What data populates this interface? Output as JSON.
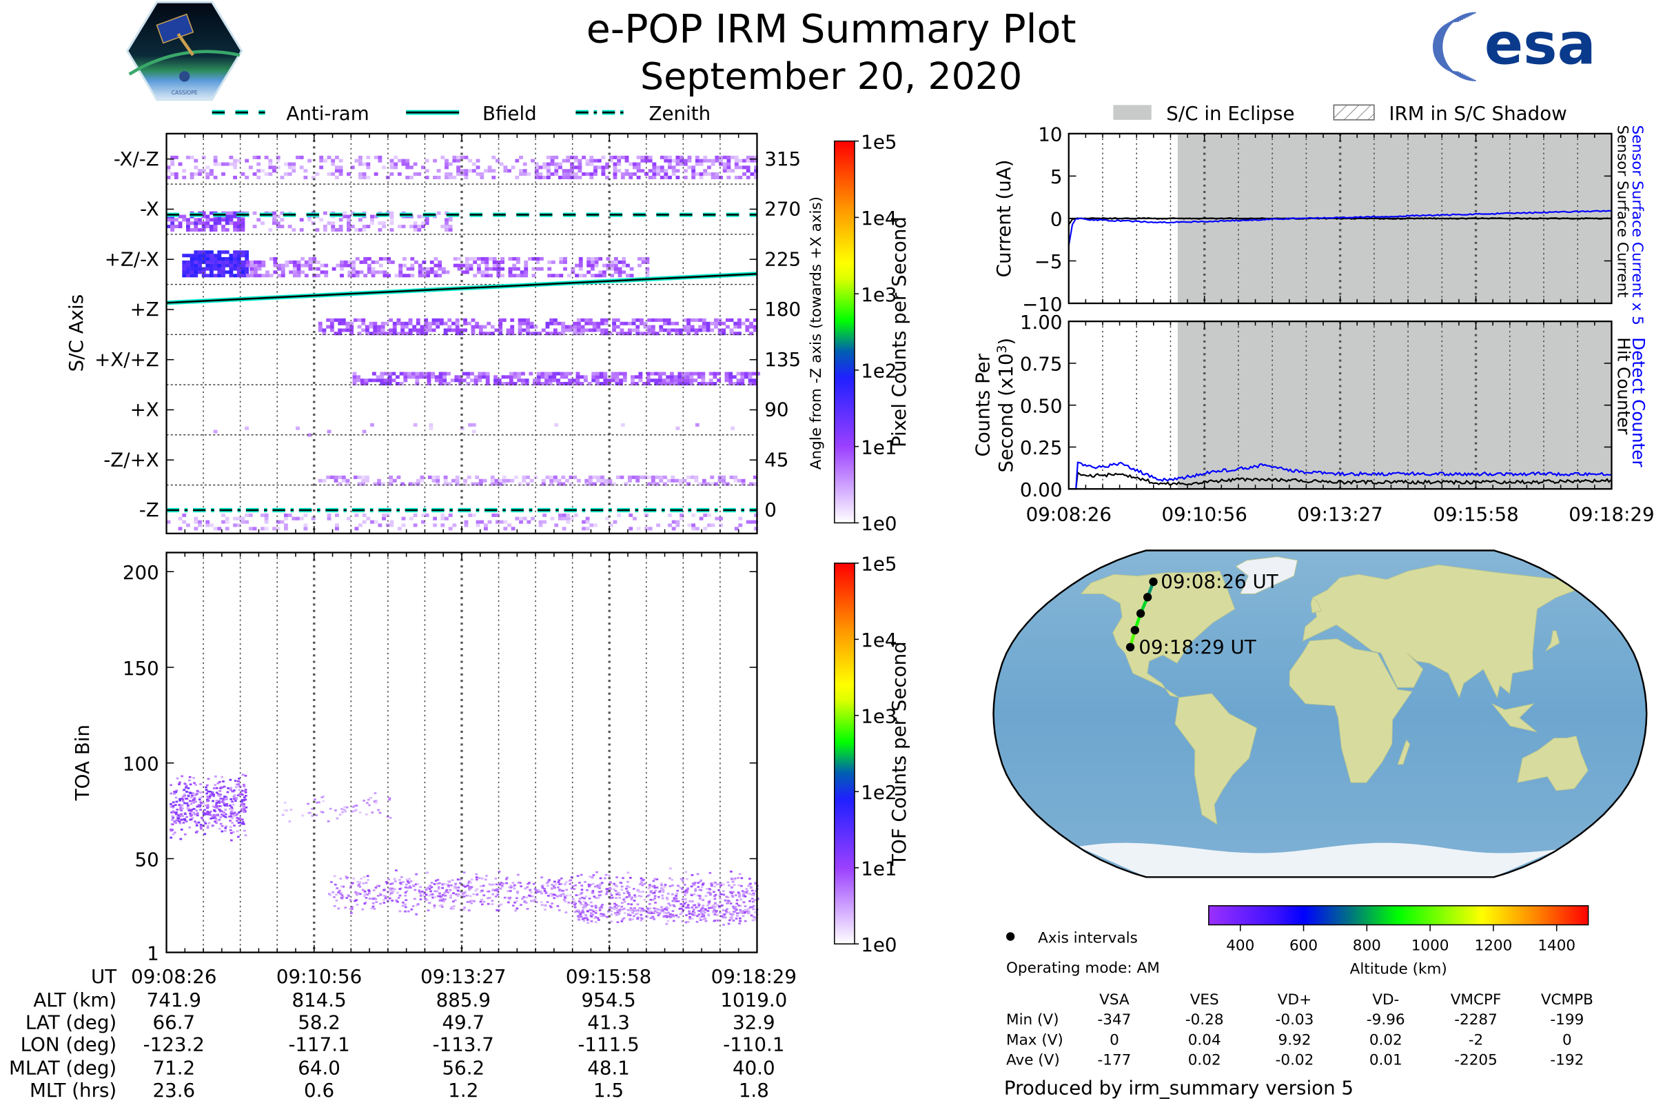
{
  "header": {
    "title": "e-POP IRM Summary Plot",
    "date": "September 20, 2020",
    "logo_left_text": "CASSIOPE",
    "logo_right_text": "esa"
  },
  "legend_left": [
    {
      "label": "Anti-ram",
      "style": "dashed"
    },
    {
      "label": "Bfield",
      "style": "solid"
    },
    {
      "label": "Zenith",
      "style": "dashdot"
    }
  ],
  "legend_right": [
    {
      "label": "S/C in Eclipse",
      "style": "fill"
    },
    {
      "label": "IRM in S/C Shadow",
      "style": "hatch"
    }
  ],
  "colors": {
    "line_cyan": "#00e8c8",
    "eclipse_gray": "#c8caca",
    "blue_series": "#0000ff",
    "esa_blue": "#0a3a8c"
  },
  "time_ticks": [
    "09:08:26",
    "09:10:56",
    "09:13:27",
    "09:15:58",
    "09:18:29"
  ],
  "chart_data": [
    {
      "id": "sc_axis",
      "type": "heatmap",
      "ylabel": "S/C Axis",
      "y2label": "Angle from -Z axis (towards +X axis)",
      "colorbar_label": "Pixel Counts per Second",
      "colorbar_ticks": [
        "1e5",
        "1e4",
        "1e3",
        "1e2",
        "1e1",
        "1e0"
      ],
      "x_range_s": [
        0,
        603
      ],
      "angle_range": [
        -21,
        338
      ],
      "axis_labels": [
        {
          "label": "-X/-Z",
          "angle": 315
        },
        {
          "label": "-X",
          "angle": 270
        },
        {
          "label": "+Z/-X",
          "angle": 225
        },
        {
          "label": "+Z",
          "angle": 180
        },
        {
          "label": "+X/+Z",
          "angle": 135
        },
        {
          "label": "+X",
          "angle": 90
        },
        {
          "label": "-Z/+X",
          "angle": 45
        },
        {
          "label": "-Z",
          "angle": 0
        }
      ],
      "angle_ticks": [
        "315",
        "270",
        "225",
        "180",
        "135",
        "90",
        "45",
        "0"
      ],
      "bands": [
        {
          "t": [
            0,
            380
          ],
          "a": [
            297,
            317
          ],
          "density": 0.3,
          "log_counts": [
            0.2,
            0.9
          ]
        },
        {
          "t": [
            380,
            603
          ],
          "a": [
            297,
            317
          ],
          "density": 0.6,
          "log_counts": [
            0.3,
            1.1
          ]
        },
        {
          "t": [
            0,
            80
          ],
          "a": [
            250,
            268
          ],
          "density": 0.7,
          "log_counts": [
            0.6,
            1.4
          ]
        },
        {
          "t": [
            80,
            290
          ],
          "a": [
            250,
            266
          ],
          "density": 0.35,
          "log_counts": [
            0.2,
            0.9
          ]
        },
        {
          "t": [
            16,
            81
          ],
          "a": [
            209,
            231
          ],
          "density": 0.9,
          "log_counts": [
            1.3,
            1.9
          ]
        },
        {
          "t": [
            81,
            490
          ],
          "a": [
            209,
            226
          ],
          "density": 0.5,
          "log_counts": [
            0.3,
            1.1
          ]
        },
        {
          "t": [
            155,
            603
          ],
          "a": [
            157,
            172
          ],
          "density": 0.6,
          "log_counts": [
            0.5,
            1.2
          ]
        },
        {
          "t": [
            190,
            603
          ],
          "a": [
            112,
            123
          ],
          "density": 0.7,
          "log_counts": [
            0.5,
            1.2
          ]
        },
        {
          "t": [
            40,
            603
          ],
          "a": [
            66,
            78
          ],
          "density": 0.04,
          "log_counts": [
            0.2,
            0.6
          ]
        },
        {
          "t": [
            155,
            603
          ],
          "a": [
            22,
            29
          ],
          "density": 0.5,
          "log_counts": [
            0.2,
            0.8
          ]
        },
        {
          "t": [
            0,
            603
          ],
          "a": [
            -18,
            -3
          ],
          "density": 0.25,
          "log_counts": [
            0.2,
            0.8
          ]
        }
      ],
      "lines": {
        "anti_ram_angle": 265,
        "zenith_angle": 0,
        "bfield_angle": [
          186,
          212
        ]
      }
    },
    {
      "id": "toa",
      "type": "scatter",
      "ylabel": "TOA Bin",
      "colorbar_label": "TOF Counts per Second",
      "colorbar_ticks": [
        "1e5",
        "1e4",
        "1e3",
        "1e2",
        "1e1",
        "1e0"
      ],
      "yticks": [
        "200",
        "150",
        "100",
        "50",
        "1"
      ],
      "ytick_values": [
        200,
        150,
        100,
        50,
        1
      ],
      "ylim": [
        1,
        210
      ],
      "clusters": [
        {
          "t": [
            3,
            81
          ],
          "bin": [
            60,
            100
          ],
          "center": 78,
          "points": 420,
          "log_counts": [
            0.4,
            1.3
          ]
        },
        {
          "t": [
            114,
            230
          ],
          "bin": [
            66,
            85
          ],
          "center": 76,
          "points": 60,
          "log_counts": [
            0.2,
            0.7
          ]
        },
        {
          "t": [
            165,
            603
          ],
          "bin": [
            20,
            46
          ],
          "center": 33,
          "points": 900,
          "log_counts": [
            0.3,
            1.0
          ]
        },
        {
          "t": [
            415,
            603
          ],
          "bin": [
            15,
            30
          ],
          "center": 22,
          "points": 350,
          "log_counts": [
            0.3,
            1.0
          ]
        }
      ]
    },
    {
      "id": "current",
      "type": "line",
      "ylabel": "Current (uA)",
      "yticks": [
        "10",
        "5",
        "0",
        "−5",
        "−10"
      ],
      "ylim": [
        -10,
        10
      ],
      "right_label_blue": "Sensor Surface Current x 5",
      "right_label_black": "Sensor Surface Current",
      "eclipse_start_s": 121,
      "series": [
        {
          "name": "Sensor Surface Current x 5",
          "color": "#0000ff",
          "t": [
            0,
            4,
            8,
            30,
            60,
            100,
            150,
            200,
            250,
            300,
            400,
            500,
            603
          ],
          "values": [
            -3.5,
            -0.8,
            0,
            -0.2,
            -0.3,
            -0.5,
            -0.4,
            -0.2,
            0,
            0.1,
            0.4,
            0.7,
            1.0
          ]
        },
        {
          "name": "Sensor Surface Current",
          "color": "#000000",
          "t": [
            0,
            4,
            8,
            603
          ],
          "values": [
            -0.8,
            -0.1,
            0,
            0
          ]
        }
      ]
    },
    {
      "id": "counts",
      "type": "line",
      "ylabel_line1": "Counts Per",
      "ylabel_line2": "Second (x10",
      "ylabel_sup": "3",
      "ylabel_end": ")",
      "yticks": [
        "1.00",
        "0.75",
        "0.50",
        "0.25",
        "0.00"
      ],
      "ylim": [
        0,
        1
      ],
      "right_label_blue": "Detect Counter",
      "right_label_black": "Hit Counter",
      "series": [
        {
          "name": "Detect Counter",
          "color": "#0000ff",
          "t": [
            0,
            8,
            10,
            30,
            60,
            80,
            100,
            120,
            160,
            214,
            260,
            300,
            400,
            500,
            603
          ],
          "values": [
            0,
            0,
            0.15,
            0.13,
            0.15,
            0.1,
            0.05,
            0.06,
            0.1,
            0.14,
            0.1,
            0.09,
            0.09,
            0.09,
            0.09
          ]
        },
        {
          "name": "Hit Counter",
          "color": "#000000",
          "t": [
            0,
            8,
            10,
            30,
            60,
            80,
            100,
            120,
            200,
            300,
            400,
            500,
            603
          ],
          "values": [
            0,
            0,
            0.09,
            0.08,
            0.09,
            0.06,
            0.03,
            0.03,
            0.06,
            0.04,
            0.04,
            0.04,
            0.05
          ]
        }
      ]
    },
    {
      "id": "ground_track",
      "type": "scatter",
      "label_start": "09:08:26 UT",
      "label_end": "09:18:29 UT",
      "colorbar_label": "Altitude (km)",
      "colorbar_range": [
        300,
        1500
      ],
      "colorbar_ticks": [
        "400",
        "600",
        "800",
        "1000",
        "1200",
        "1400"
      ],
      "colorbar_tick_values": [
        400,
        600,
        800,
        1000,
        1200,
        1400
      ]
    }
  ],
  "ephemeris": {
    "row_labels": [
      "UT",
      "ALT (km)",
      "LAT (deg)",
      "LON (deg)",
      "MLAT (deg)",
      "MLT (hrs)"
    ],
    "columns": [
      [
        "09:08:26",
        "741.9",
        "66.7",
        "-123.2",
        "71.2",
        "23.6"
      ],
      [
        "09:10:56",
        "814.5",
        "58.2",
        "-117.1",
        "64.0",
        "0.6"
      ],
      [
        "09:13:27",
        "885.9",
        "49.7",
        "-113.7",
        "56.2",
        "1.2"
      ],
      [
        "09:15:58",
        "954.5",
        "41.3",
        "-111.5",
        "48.1",
        "1.5"
      ],
      [
        "09:18:29",
        "1019.0",
        "32.9",
        "-110.1",
        "40.0",
        "1.8"
      ]
    ]
  },
  "info": {
    "axis_intervals": "Axis intervals",
    "operating_mode": "Operating mode: AM",
    "footer": "Produced by irm_summary version 5"
  },
  "voltages": {
    "headers": [
      "VSA",
      "VES",
      "VD+",
      "VD-",
      "VMCPF",
      "VCMPB"
    ],
    "rows": [
      {
        "label": "Min (V)",
        "values": [
          "-347",
          "-0.28",
          "-0.03",
          "-9.96",
          "-2287",
          "-199"
        ]
      },
      {
        "label": "Max (V)",
        "values": [
          "0",
          "0.04",
          "9.92",
          "0.02",
          "-2",
          "0"
        ]
      },
      {
        "label": "Ave (V)",
        "values": [
          "-177",
          "0.02",
          "-0.02",
          "0.01",
          "-2205",
          "-192"
        ]
      }
    ]
  }
}
